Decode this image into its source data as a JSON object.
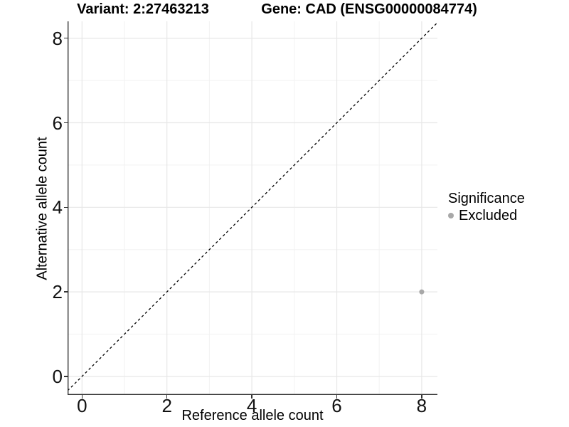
{
  "title": {
    "variant": "Variant: 2:27463213",
    "gene": "Gene: CAD (ENSG00000084774)"
  },
  "axes": {
    "x": {
      "label": "Reference allele count",
      "tick_labels": [
        "0",
        "2",
        "4",
        "6",
        "8"
      ]
    },
    "y": {
      "label": "Alternative allele count",
      "tick_labels": [
        "0",
        "2",
        "4",
        "6",
        "8"
      ]
    }
  },
  "legend": {
    "title": "Significance",
    "items": [
      {
        "label": "Excluded",
        "color": "#a8a8a8"
      }
    ]
  },
  "colors": {
    "background": "#ffffff",
    "axis_line": "#333333",
    "major_grid": "#e7e7e7",
    "minor_grid": "#f2f2f2",
    "reference_line": "#000000",
    "point": "#a8a8a8",
    "text": "#000000"
  },
  "chart_data": {
    "type": "scatter",
    "title_left": "Variant: 2:27463213",
    "title_right": "Gene: CAD (ENSG00000084774)",
    "xlabel": "Reference allele count",
    "ylabel": "Alternative allele count",
    "x_ticks": [
      0,
      2,
      4,
      6,
      8
    ],
    "y_ticks": [
      0,
      2,
      4,
      6,
      8
    ],
    "x_minor": [
      1,
      3,
      5,
      7
    ],
    "y_minor": [
      1,
      3,
      5,
      7
    ],
    "xlim": [
      -0.34,
      8.37
    ],
    "ylim": [
      -0.44,
      8.4
    ],
    "series": [
      {
        "name": "Excluded",
        "color": "#a8a8a8",
        "points": [
          {
            "x": 8,
            "y": 2
          }
        ]
      }
    ],
    "reference_line": {
      "type": "identity",
      "slope": 1,
      "intercept": 0,
      "style": "dashed"
    },
    "grid": "major+minor",
    "legend_position": "right",
    "legend_title": "Significance"
  }
}
